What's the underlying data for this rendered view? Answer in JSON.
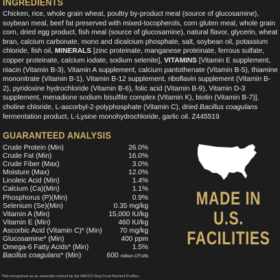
{
  "ingredients": {
    "heading": "INGREDIENTS",
    "parts": [
      "Chicken, rice, whole grain wheat, poultry by-product meal (source of glucosamine), soybean meal, beef fat preserved with mixed-tocopherols, corn gluten meal, whole grain corn, dried egg product, fish meal (source of glucosamine), natural flavor, glycerin, wheat bran, calcium carbonate, mono and dicalcium phosphate, salt, soybean oil, potassium chloride, fish oil, ",
      "MINERALS",
      " [zinc proteinate, manganese proteinate, ferrous sulfate, copper proteinate, calcium iodate, sodium selenite], ",
      "VITAMINS",
      " [Vitamin E supplement, niacin (Vitamin B-3), Vitamin A supplement, calcium pantothenate (Vitamin B-5), thiamine mononitrate (Vitamin B-1), Vitamin B-12 supplement, riboflavin supplement (Vitamin B-2), pyridoxine hydrochloride (Vitamin B-6), folic acid (Vitamin B-9), Vitamin D-3 supplement, menadione sodium bisulfite complex (Vitamin K), biotin (Vitamin B-7)], choline chloride, L-ascorbyl-2-polyphosphate (Vitamin C), dried ",
      "Bacillus coagulans",
      " fermentation product, L-Lysine monohydrochloride, garlic oil. Z445519"
    ]
  },
  "analysis": {
    "heading": "GUARANTEED ANALYSIS",
    "rows": [
      [
        "Crude Protein (Min)",
        "26.0%"
      ],
      [
        "Crude Fat (Min)",
        "16.0%"
      ],
      [
        "Crude Fiber (Max)",
        "3.0%"
      ],
      [
        "Moisture (Max)",
        "12.0%"
      ],
      [
        "Linoleic Acid (Min)",
        "1.4%"
      ],
      [
        "Calcium (Ca)(Min)",
        "1.1%"
      ],
      [
        "Phosphorus (P)(Min)",
        "0.9%"
      ],
      [
        "Selenium (Se)(Min)",
        "0.35 mg/kg"
      ],
      [
        "Vitamin A (Min)",
        "15,000 IU/kg"
      ],
      [
        "Vitamin E (Min)",
        "460 IU/kg"
      ],
      [
        "Ascorbic Acid (Vitamin C)* (Min)",
        "70 mg/kg"
      ],
      [
        "Glucosamine* (Min)",
        "400 ppm"
      ],
      [
        "Omega-6 Fatty Acids* (Min)",
        "1.5%"
      ]
    ],
    "last": {
      "name_italic": "Bacillus coagulans",
      "name_rest": "* (Min)",
      "value": "600",
      "unit": "million CFU/lb"
    },
    "footnote": "*Not recognized as an essential nutrient by the AAFCO Dog Food Nutrient Profiles."
  },
  "badge": {
    "lines": [
      "MADE IN",
      "U.S.",
      "FACILITIES"
    ]
  }
}
